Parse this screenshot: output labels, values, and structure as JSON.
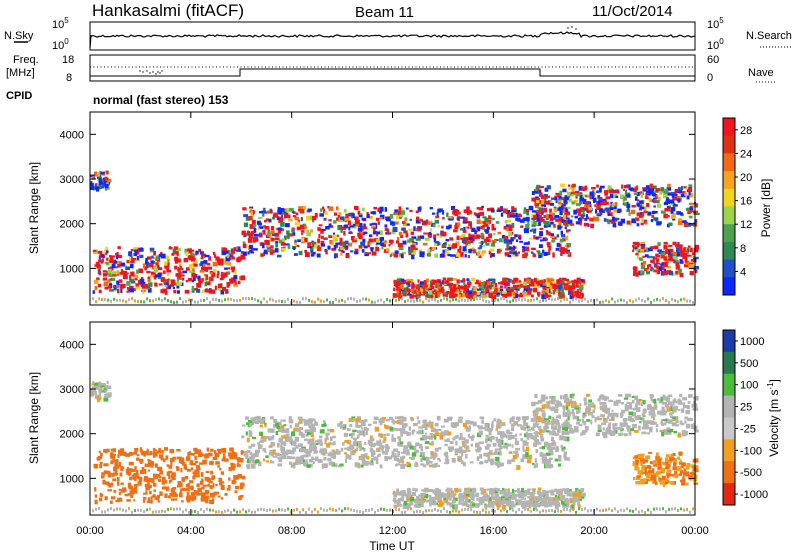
{
  "header": {
    "station": "Hankasalmi (fitACF)",
    "beam": "Beam 11",
    "date": "11/Oct/2014"
  },
  "noise_panel": {
    "left_label": "N.Sky",
    "left_ticks": [
      "10^5",
      "10^0"
    ],
    "right_label": "N.Search",
    "right_ticks": [
      "10^5",
      "10^0"
    ]
  },
  "freq_panel": {
    "left_label_1": "Freq.",
    "left_label_2": "[MHz]",
    "left_ticks": [
      "18",
      "8"
    ],
    "right_label": "Nave",
    "right_ticks": [
      "60",
      "0"
    ]
  },
  "cpid": {
    "label": "CPID",
    "mode": "normal (fast stereo) 153"
  },
  "colors": {
    "power_scale": [
      "#0a28ff",
      "#2050c8",
      "#2f8a52",
      "#4ea24e",
      "#9bd44a",
      "#f0d41e",
      "#f7a51e",
      "#f26a12",
      "#e03212",
      "#f0141e"
    ],
    "velocity_scale": [
      "#1c3ca8",
      "#2a7850",
      "#4cbc3c",
      "#b4b4b4",
      "#c8c8c8",
      "#f0a01e",
      "#f06e14",
      "#e02814"
    ]
  },
  "chart_data": [
    {
      "type": "heatmap",
      "panel": "power",
      "xlabel": "",
      "ylabel": "Slant Range [km]",
      "xlim": [
        "00:00",
        "24:00"
      ],
      "ylim": [
        180,
        4500
      ],
      "y_ticks": [
        "1000",
        "2000",
        "3000",
        "4000"
      ],
      "colorbar": {
        "label": "Power [dB]",
        "ticks": [
          "4",
          "8",
          "12",
          "16",
          "20",
          "24",
          "28"
        ],
        "range": [
          0,
          30
        ]
      },
      "features": [
        {
          "t_start": 0.0,
          "t_end": 0.7,
          "range_min": 2800,
          "range_max": 3200,
          "power_db": 6
        },
        {
          "t_start": 0.1,
          "t_end": 6.0,
          "range_min": 500,
          "range_max": 1500,
          "power_db": 24
        },
        {
          "t_start": 6.0,
          "t_end": 19.0,
          "range_min": 1300,
          "range_max": 2400,
          "power_db": 18
        },
        {
          "t_start": 12.0,
          "t_end": 19.5,
          "range_min": 400,
          "range_max": 800,
          "power_db": 26
        },
        {
          "t_start": 17.5,
          "t_end": 24.0,
          "range_min": 2000,
          "range_max": 2900,
          "power_db": 14
        },
        {
          "t_start": 21.5,
          "t_end": 24.0,
          "range_min": 900,
          "range_max": 1600,
          "power_db": 28
        }
      ]
    },
    {
      "type": "heatmap",
      "panel": "velocity",
      "xlabel": "Time UT",
      "ylabel": "Slant Range [km]",
      "xlim": [
        "00:00",
        "24:00"
      ],
      "ylim": [
        180,
        4500
      ],
      "y_ticks": [
        "1000",
        "2000",
        "3000",
        "4000"
      ],
      "x_ticks": [
        "00:00",
        "04:00",
        "08:00",
        "12:00",
        "16:00",
        "20:00",
        "00:00"
      ],
      "colorbar": {
        "label": "Velocity [m s^-1]",
        "ticks": [
          "1000",
          "500",
          "100",
          "25",
          "-25",
          "-100",
          "-500",
          "-1000"
        ]
      },
      "features": [
        {
          "t_start": 0.0,
          "t_end": 0.7,
          "range_min": 2800,
          "range_max": 3200,
          "velocity": 0
        },
        {
          "t_start": 0.1,
          "t_end": 6.0,
          "range_min": 500,
          "range_max": 1700,
          "velocity": -300
        },
        {
          "t_start": 6.0,
          "t_end": 19.0,
          "range_min": 1300,
          "range_max": 2400,
          "velocity": 0
        },
        {
          "t_start": 12.0,
          "t_end": 19.5,
          "range_min": 400,
          "range_max": 800,
          "velocity": 0
        },
        {
          "t_start": 17.5,
          "t_end": 24.0,
          "range_min": 2000,
          "range_max": 2900,
          "velocity": 0
        },
        {
          "t_start": 21.5,
          "t_end": 24.0,
          "range_min": 900,
          "range_max": 1600,
          "velocity": -100
        }
      ]
    }
  ]
}
